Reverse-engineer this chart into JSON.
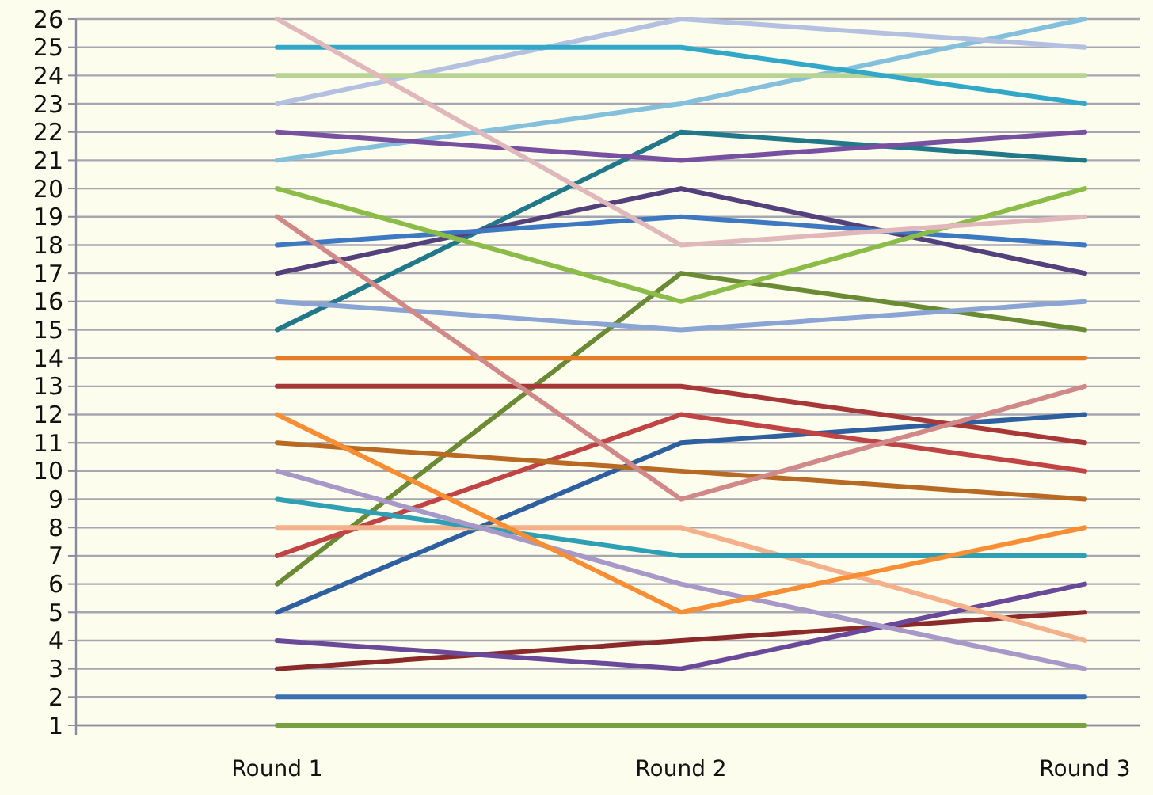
{
  "chart_data": {
    "type": "line",
    "categories": [
      "Round 1",
      "Round 2",
      "Round 3"
    ],
    "ylim": [
      1,
      26
    ],
    "yticks": [
      1,
      2,
      3,
      4,
      5,
      6,
      7,
      8,
      9,
      10,
      11,
      12,
      13,
      14,
      15,
      16,
      17,
      18,
      19,
      20,
      21,
      22,
      23,
      24,
      25,
      26
    ],
    "grid": "y",
    "marker": "none",
    "line_style": "solid",
    "series": [
      {
        "color": "#77a040",
        "values": [
          1,
          1,
          1
        ]
      },
      {
        "color": "#3a6fb0",
        "values": [
          2,
          2,
          2
        ]
      },
      {
        "color": "#8b2a2a",
        "values": [
          3,
          4,
          5
        ]
      },
      {
        "color": "#6a4a98",
        "values": [
          4,
          3,
          6
        ]
      },
      {
        "color": "#2e5f9e",
        "values": [
          5,
          11,
          12
        ]
      },
      {
        "color": "#6a8a34",
        "values": [
          6,
          17,
          15
        ]
      },
      {
        "color": "#c04444",
        "values": [
          7,
          12,
          10
        ]
      },
      {
        "color": "#f4b08a",
        "values": [
          8,
          8,
          4
        ]
      },
      {
        "color": "#2f9fb4",
        "values": [
          9,
          7,
          7
        ]
      },
      {
        "color": "#a898c8",
        "values": [
          10,
          6,
          3
        ]
      },
      {
        "color": "#b86a24",
        "values": [
          11,
          10,
          9
        ]
      },
      {
        "color": "#f88e34",
        "values": [
          12,
          5,
          8
        ]
      },
      {
        "color": "#a83838",
        "values": [
          13,
          13,
          11
        ]
      },
      {
        "color": "#e47c28",
        "values": [
          14,
          14,
          14
        ]
      },
      {
        "color": "#217888",
        "values": [
          15,
          22,
          21
        ]
      },
      {
        "color": "#8aa4d4",
        "values": [
          16,
          15,
          16
        ]
      },
      {
        "color": "#54407a",
        "values": [
          17,
          20,
          17
        ]
      },
      {
        "color": "#3e78c0",
        "values": [
          18,
          19,
          18
        ]
      },
      {
        "color": "#d08888",
        "values": [
          19,
          9,
          13
        ]
      },
      {
        "color": "#8cbc48",
        "values": [
          20,
          16,
          20
        ]
      },
      {
        "color": "#84c0dc",
        "values": [
          21,
          23,
          26
        ]
      },
      {
        "color": "#7850a0",
        "values": [
          22,
          21,
          22
        ]
      },
      {
        "color": "#b4c0e0",
        "values": [
          23,
          26,
          25
        ]
      },
      {
        "color": "#b8d494",
        "values": [
          24,
          24,
          24
        ]
      },
      {
        "color": "#32a8c8",
        "values": [
          25,
          25,
          23
        ]
      },
      {
        "color": "#e0b8bc",
        "values": [
          26,
          18,
          19
        ]
      }
    ]
  }
}
